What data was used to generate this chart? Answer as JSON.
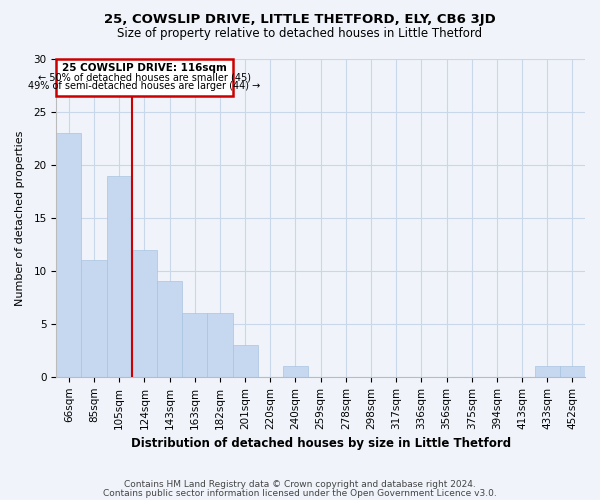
{
  "title": "25, COWSLIP DRIVE, LITTLE THETFORD, ELY, CB6 3JD",
  "subtitle": "Size of property relative to detached houses in Little Thetford",
  "xlabel": "Distribution of detached houses by size in Little Thetford",
  "ylabel": "Number of detached properties",
  "bar_labels": [
    "66sqm",
    "85sqm",
    "105sqm",
    "124sqm",
    "143sqm",
    "163sqm",
    "182sqm",
    "201sqm",
    "220sqm",
    "240sqm",
    "259sqm",
    "278sqm",
    "298sqm",
    "317sqm",
    "336sqm",
    "356sqm",
    "375sqm",
    "394sqm",
    "413sqm",
    "433sqm",
    "452sqm"
  ],
  "bar_values": [
    23,
    11,
    19,
    12,
    9,
    6,
    6,
    3,
    0,
    1,
    0,
    0,
    0,
    0,
    0,
    0,
    0,
    0,
    0,
    1,
    1
  ],
  "bar_color": "#c5d8f0",
  "bar_edge_color": "#a8c4e0",
  "annotation_text_line1": "25 COWSLIP DRIVE: 116sqm",
  "annotation_text_line2": "← 50% of detached houses are smaller (45)",
  "annotation_text_line3": "49% of semi-detached houses are larger (44) →",
  "vline_color": "#cc0000",
  "vline_x_index": 2.5,
  "ylim": [
    0,
    30
  ],
  "yticks": [
    0,
    5,
    10,
    15,
    20,
    25,
    30
  ],
  "footer_line1": "Contains HM Land Registry data © Crown copyright and database right 2024.",
  "footer_line2": "Contains public sector information licensed under the Open Government Licence v3.0.",
  "bg_color": "#f0f4fa",
  "grid_color": "#c8d8ea",
  "title_fontsize": 9.5,
  "subtitle_fontsize": 8.5,
  "xlabel_fontsize": 8.5,
  "ylabel_fontsize": 8,
  "tick_fontsize": 7.5,
  "footer_fontsize": 6.5
}
